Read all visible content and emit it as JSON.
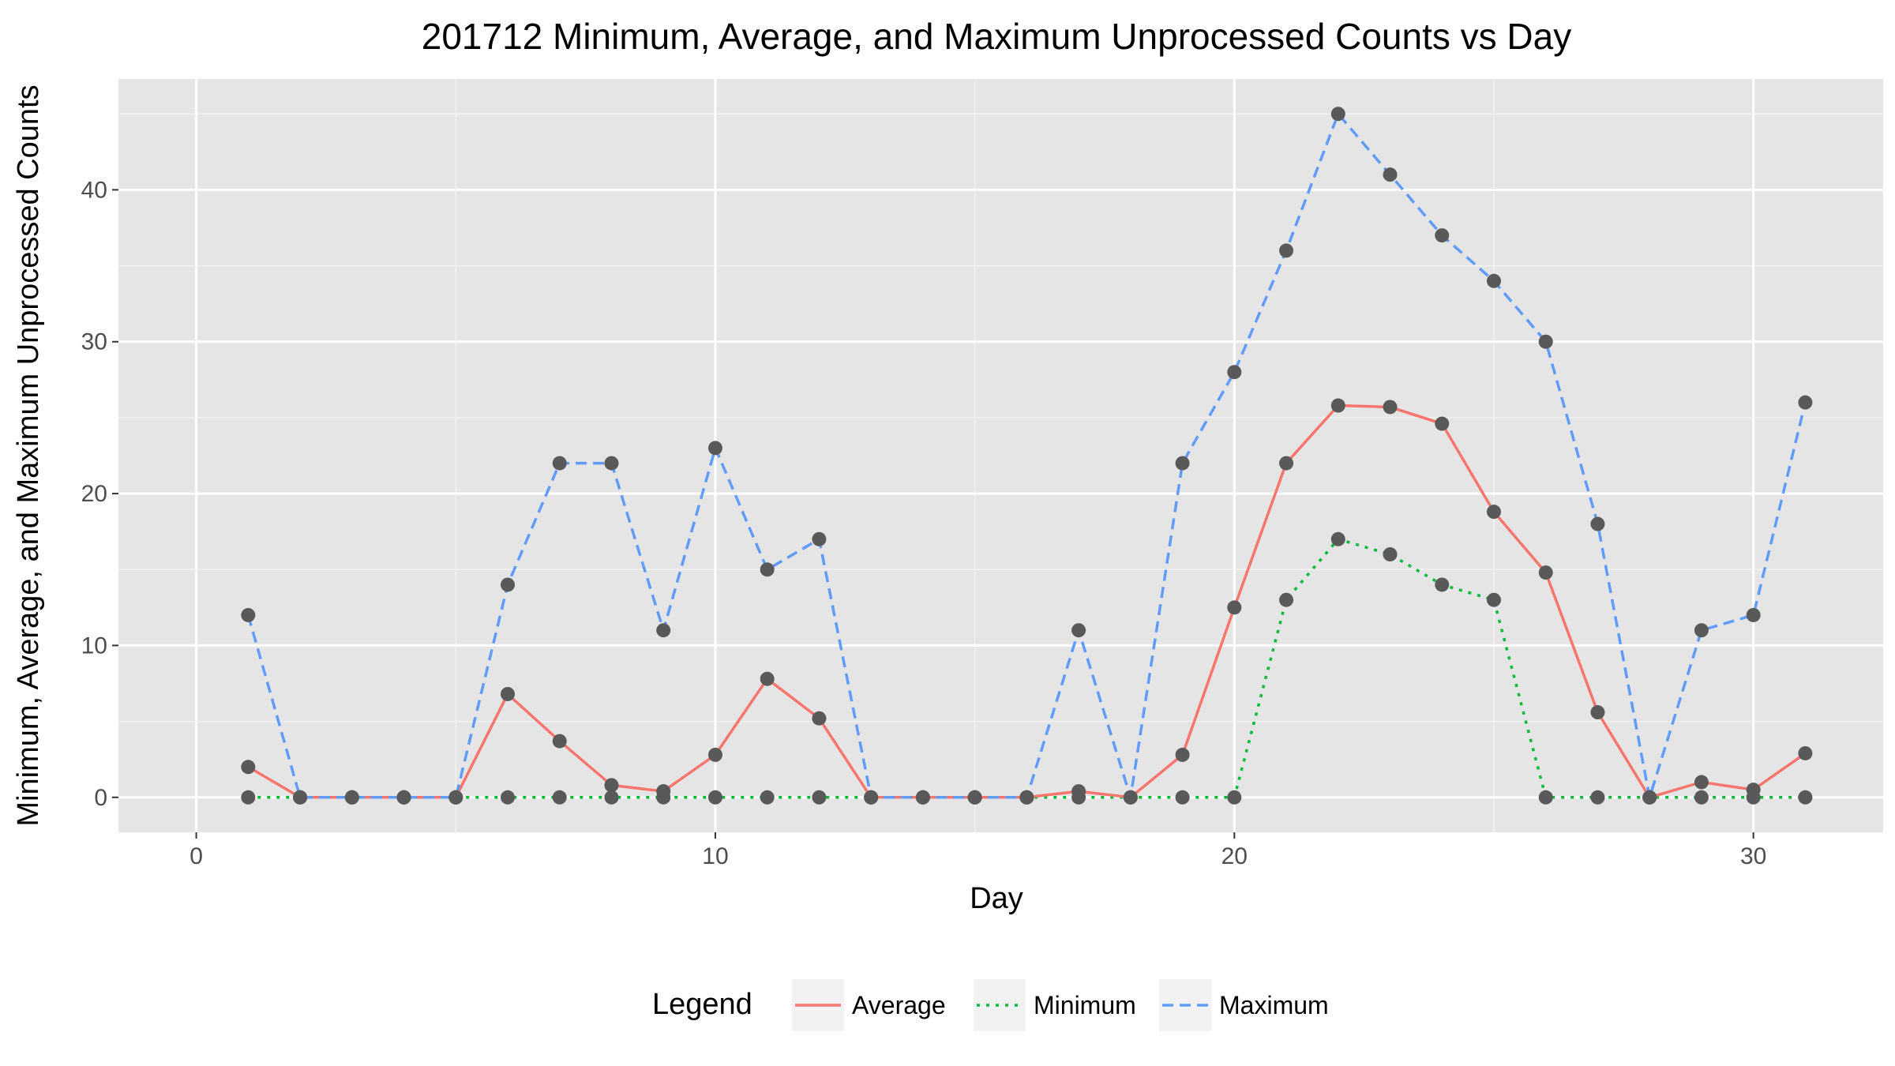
{
  "chart_data": {
    "type": "line",
    "title": "201712 Minimum, Average, and Maximum Unprocessed Counts vs Day",
    "xlabel": "Day",
    "ylabel": "Minimum, Average, and Maximum Unprocessed Counts",
    "xlim": [
      -1.5,
      32.5
    ],
    "ylim": [
      -2.3,
      47.3
    ],
    "x_ticks": [
      0,
      10,
      20,
      30
    ],
    "y_ticks": [
      0,
      10,
      20,
      30,
      40
    ],
    "grid": true,
    "legend": {
      "title": "Legend",
      "position": "bottom"
    },
    "point_color": "#595959",
    "panel_color": "#e5e5e5",
    "x": [
      1,
      2,
      3,
      4,
      5,
      6,
      7,
      8,
      9,
      10,
      11,
      12,
      13,
      14,
      15,
      16,
      17,
      18,
      19,
      20,
      21,
      22,
      23,
      24,
      25,
      26,
      27,
      28,
      29,
      30,
      31
    ],
    "series": [
      {
        "name": "Average",
        "color": "#f8766d",
        "dash": "solid",
        "values": [
          2,
          0,
          0,
          0,
          0,
          6.8,
          3.7,
          0.8,
          0.4,
          2.8,
          7.8,
          5.2,
          0,
          0,
          0,
          0,
          0.4,
          0,
          2.8,
          12.5,
          22,
          25.8,
          25.7,
          24.6,
          18.8,
          14.8,
          5.6,
          0,
          1,
          0.5,
          2.9
        ]
      },
      {
        "name": "Minimum",
        "color": "#00ba38",
        "dash": "dotted",
        "values": [
          0,
          0,
          0,
          0,
          0,
          0,
          0,
          0,
          0,
          0,
          0,
          0,
          0,
          0,
          0,
          0,
          0,
          0,
          0,
          0,
          13,
          17,
          16,
          14,
          13,
          0,
          0,
          0,
          0,
          0,
          0
        ]
      },
      {
        "name": "Maximum",
        "color": "#619cff",
        "dash": "dashed",
        "values": [
          12,
          0,
          0,
          0,
          0,
          14,
          22,
          22,
          11,
          23,
          15,
          17,
          0,
          0,
          0,
          0,
          11,
          0,
          22,
          28,
          36,
          45,
          41,
          37,
          34,
          30,
          18,
          0,
          11,
          12,
          26
        ]
      }
    ]
  }
}
